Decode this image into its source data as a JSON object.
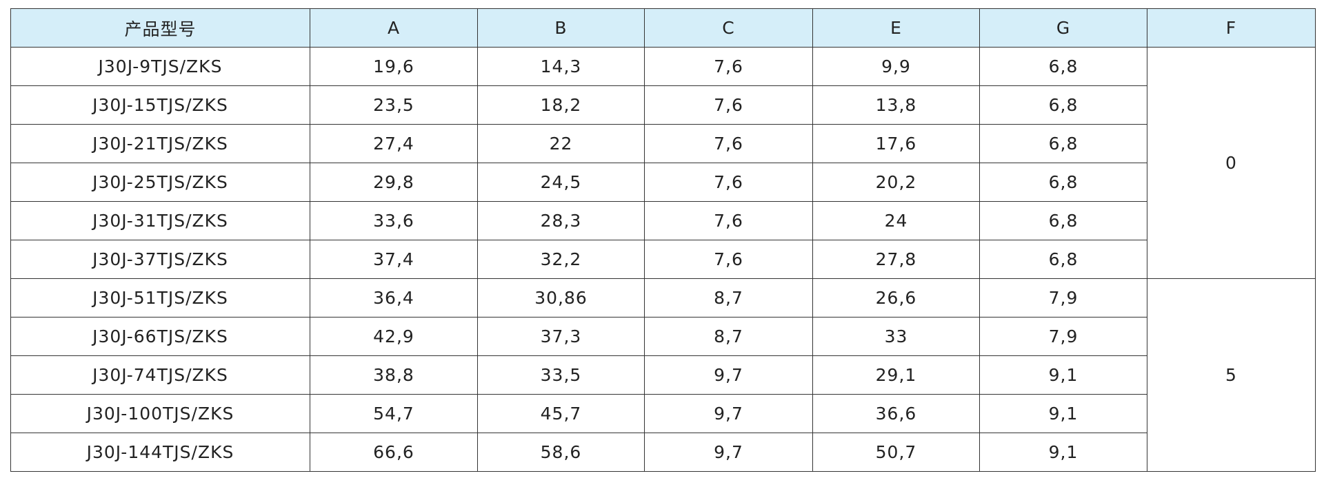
{
  "table": {
    "header": [
      "产品型号",
      "A",
      "B",
      "C",
      "E",
      "G",
      "F"
    ],
    "rows": [
      [
        "J30J-9TJS/ZKS",
        "19,6",
        "14,3",
        "7,6",
        "9,9",
        "6,8"
      ],
      [
        "J30J-15TJS/ZKS",
        "23,5",
        "18,2",
        "7,6",
        "13,8",
        "6,8"
      ],
      [
        "J30J-21TJS/ZKS",
        "27,4",
        "22",
        "7,6",
        "17,6",
        "6,8"
      ],
      [
        "J30J-25TJS/ZKS",
        "29,8",
        "24,5",
        "7,6",
        "20,2",
        "6,8"
      ],
      [
        "J30J-31TJS/ZKS",
        "33,6",
        "28,3",
        "7,6",
        "24",
        "6,8"
      ],
      [
        "J30J-37TJS/ZKS",
        "37,4",
        "32,2",
        "7,6",
        "27,8",
        "6,8"
      ],
      [
        "J30J-51TJS/ZKS",
        "36,4",
        "30,86",
        "8,7",
        "26,6",
        "7,9"
      ],
      [
        "J30J-66TJS/ZKS",
        "42,9",
        "37,3",
        "8,7",
        "33",
        "7,9"
      ],
      [
        "J30J-74TJS/ZKS",
        "38,8",
        "33,5",
        "9,7",
        "29,1",
        "9,1"
      ],
      [
        "J30J-100TJS/ZKS",
        "54,7",
        "45,7",
        "9,7",
        "36,6",
        "9,1"
      ],
      [
        "J30J-144TJS/ZKS",
        "66,6",
        "58,6",
        "9,7",
        "50,7",
        "9,1"
      ]
    ],
    "f_groups": [
      "0",
      "5"
    ]
  }
}
